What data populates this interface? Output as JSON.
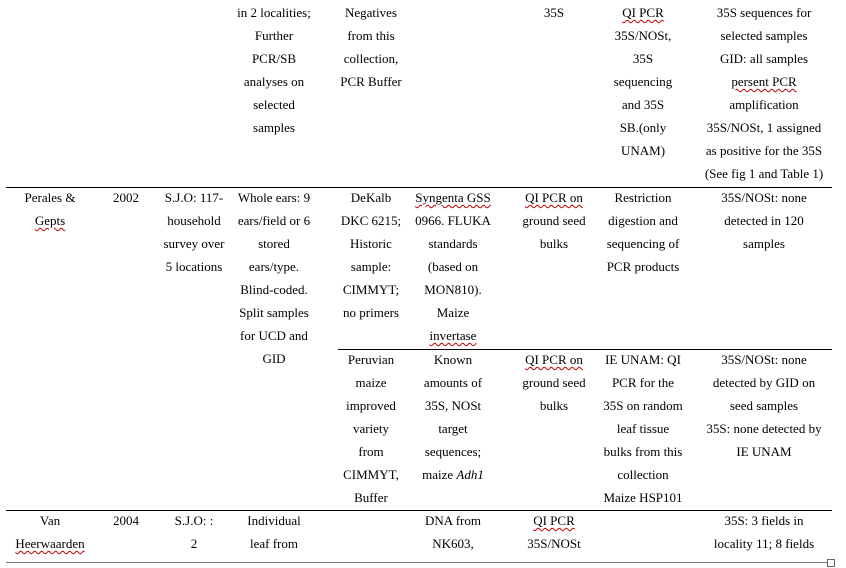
{
  "rows": [
    {
      "cells": {
        "col3": [
          "in 2 localities;",
          "Further",
          "PCR/SB",
          "analyses on",
          "selected",
          "samples"
        ],
        "col4": [
          "Negatives",
          "from this",
          "collection,",
          "PCR Buffer"
        ],
        "col6": [
          "35S"
        ],
        "col7": [
          "QI PCR",
          "35S/NOSt,",
          "35S",
          "sequencing",
          "and 35S",
          "SB.(only",
          "UNAM)"
        ],
        "col8": [
          "35S sequences for",
          "selected samples",
          "GID: all  samples",
          "persent PCR",
          "amplification",
          "35S/NOSt, 1 assigned",
          "as positive for the 35S",
          "(See fig 1 and Table 1)"
        ]
      }
    },
    {
      "cells": {
        "col1": [
          "Perales &",
          "Gepts"
        ],
        "col2": [
          "2002"
        ],
        "col3a": [
          "S.J.O: 117-",
          "household",
          "survey over",
          "5 locations"
        ],
        "col3b": [
          "Whole ears: 9",
          "ears/field or 6",
          "stored",
          "ears/type.",
          "Blind-coded.",
          "Split samples",
          "for UCD and",
          "GID"
        ]
      },
      "subrows": [
        {
          "col4": [
            "DeKalb",
            "DKC 6215;",
            "Historic",
            "sample:",
            "CIMMYT;",
            "no primers"
          ],
          "col5": [
            "Syngenta GSS",
            "0966. FLUKA",
            "standards",
            "(based on",
            "MON810).",
            "Maize",
            "invertase"
          ],
          "col6": [
            "QI PCR on",
            "ground seed",
            "bulks"
          ],
          "col7": [
            "Restriction",
            "digestion and",
            "sequencing of",
            "PCR products"
          ],
          "col8": [
            "35S/NOSt: none",
            "detected in 120",
            "samples"
          ]
        },
        {
          "col4": [
            "Peruvian",
            "maize",
            "improved",
            "variety",
            "from",
            "CIMMYT,",
            "Buffer"
          ],
          "col5": [
            "Known",
            "amounts of",
            "35S, NOSt",
            "target",
            "sequences;",
            "maize Adh1"
          ],
          "col6": [
            "QI PCR on",
            "ground seed",
            "bulks"
          ],
          "col7": [
            "IE UNAM: QI",
            "PCR for the",
            "35S on random",
            "leaf tissue",
            "bulks from this",
            "collection",
            "Maize HSP101"
          ],
          "col8": [
            "35S/NOSt: none",
            "detected by GID on",
            "seed samples",
            "35S: none detected by",
            "IE UNAM"
          ]
        }
      ]
    },
    {
      "cells": {
        "col1": [
          "Van",
          "Heerwaarden"
        ],
        "col2": [
          "2004"
        ],
        "col3a": [
          "S.J.O: :",
          "2"
        ],
        "col3b": [
          "Individual",
          "leaf from"
        ],
        "col5": [
          "DNA from",
          "NK603,"
        ],
        "col6": [
          "QI PCR",
          "35S/NOSt"
        ],
        "col8": [
          "35S: 3 fields in",
          "locality 11; 8 fields"
        ]
      }
    }
  ]
}
